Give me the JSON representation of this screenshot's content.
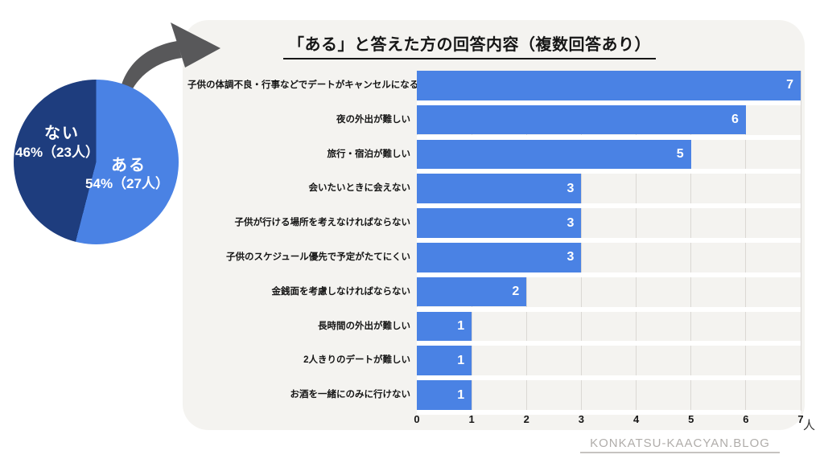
{
  "theme": {
    "background": "#ffffff",
    "panel_bg": "#f4f3f0",
    "bar_color": "#4a82e4",
    "pie_colors": [
      "#4a82e4",
      "#1e3d7e"
    ],
    "gridline_color": "#dbd8d4",
    "arrow_color": "#58585a",
    "text_color": "#161616",
    "bar_value_color": "#ffffff",
    "footer_color": "#b0adaa"
  },
  "pie": {
    "slices": [
      {
        "label": "ある",
        "detail": "54%（27人）",
        "percent": 54,
        "count": 27
      },
      {
        "label": "ない",
        "detail": "46%（23人）",
        "percent": 46,
        "count": 23
      }
    ]
  },
  "bar_chart": {
    "title": "「ある」と答えた方の回答内容（複数回答あり）",
    "unit_label": "人"
  },
  "footer": {
    "site": "KONKATSU-KAACYAN.BLOG"
  },
  "chart_data": [
    {
      "type": "pie",
      "labels": [
        "ある",
        "ない"
      ],
      "values": [
        54,
        46
      ],
      "counts": [
        27,
        23
      ],
      "labels_display": [
        "ある 54%（27人）",
        "ない 46%（23人）"
      ],
      "colors": [
        "#4a82e4",
        "#1e3d7e"
      ],
      "start_angle_deg": 0,
      "direction": "clockwise"
    },
    {
      "type": "bar",
      "orientation": "horizontal",
      "title": "「ある」と答えた方の回答内容（複数回答あり）",
      "categories": [
        "子供の体調不良・行事などでデートがキャンセルになる",
        "夜の外出が難しい",
        "旅行・宿泊が難しい",
        "会いたいときに会えない",
        "子供が行ける場所を考えなければならない",
        "子供のスケジュール優先で予定がたてにくい",
        "金銭面を考慮しなければならない",
        "長時間の外出が難しい",
        "2人きりのデートが難しい",
        "お酒を一緒にのみに行けない"
      ],
      "values": [
        7,
        6,
        5,
        3,
        3,
        3,
        2,
        1,
        1,
        1
      ],
      "xlim": [
        0,
        7
      ],
      "xticks": [
        0,
        1,
        2,
        3,
        4,
        5,
        6,
        7
      ],
      "unit": "人",
      "grid": true,
      "value_labels": "inside-end",
      "legend": "none",
      "bar_color": "#4a82e4"
    }
  ]
}
